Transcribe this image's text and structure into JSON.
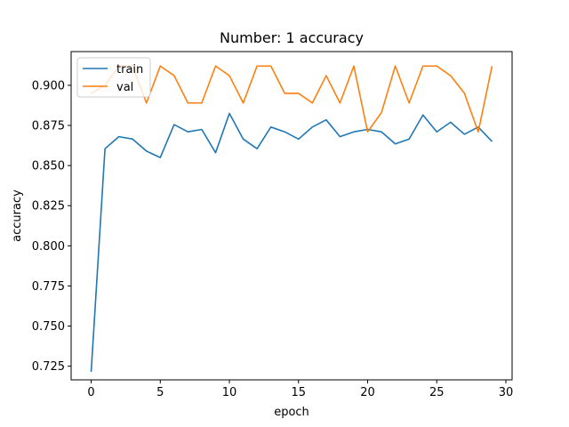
{
  "chart_data": {
    "type": "line",
    "title": "Number: 1 accuracy",
    "xlabel": "epoch",
    "ylabel": "accuracy",
    "xlim": [
      -1.45,
      30.45
    ],
    "ylim": [
      0.7165,
      0.921
    ],
    "xticks": [
      0,
      5,
      10,
      15,
      20,
      25,
      30
    ],
    "yticks": [
      0.725,
      0.75,
      0.775,
      0.8,
      0.825,
      0.85,
      0.875,
      0.9
    ],
    "xtick_labels": [
      "0",
      "5",
      "10",
      "15",
      "20",
      "25",
      "30"
    ],
    "ytick_labels": [
      "0.725",
      "0.750",
      "0.775",
      "0.800",
      "0.825",
      "0.850",
      "0.875",
      "0.900"
    ],
    "grid": false,
    "legend_position": "top-left",
    "x": [
      0,
      1,
      2,
      3,
      4,
      5,
      6,
      7,
      8,
      9,
      10,
      11,
      12,
      13,
      14,
      15,
      16,
      17,
      18,
      19,
      20,
      21,
      22,
      23,
      24,
      25,
      26,
      27,
      28,
      29
    ],
    "series": [
      {
        "name": "train",
        "color": "#1f77b4",
        "values": [
          0.7215,
          0.8605,
          0.868,
          0.8665,
          0.859,
          0.855,
          0.8755,
          0.871,
          0.8725,
          0.858,
          0.8825,
          0.8665,
          0.8605,
          0.874,
          0.871,
          0.8665,
          0.874,
          0.8785,
          0.868,
          0.871,
          0.8725,
          0.871,
          0.8635,
          0.8665,
          0.8815,
          0.871,
          0.877,
          0.8695,
          0.874,
          0.865
        ]
      },
      {
        "name": "val",
        "color": "#ff7f0e",
        "values": [
          0.895,
          0.9,
          0.912,
          0.912,
          0.889,
          0.912,
          0.906,
          0.889,
          0.889,
          0.912,
          0.906,
          0.889,
          0.912,
          0.912,
          0.895,
          0.895,
          0.889,
          0.906,
          0.889,
          0.912,
          0.871,
          0.883,
          0.912,
          0.889,
          0.912,
          0.912,
          0.906,
          0.895,
          0.871,
          0.912
        ]
      }
    ]
  }
}
